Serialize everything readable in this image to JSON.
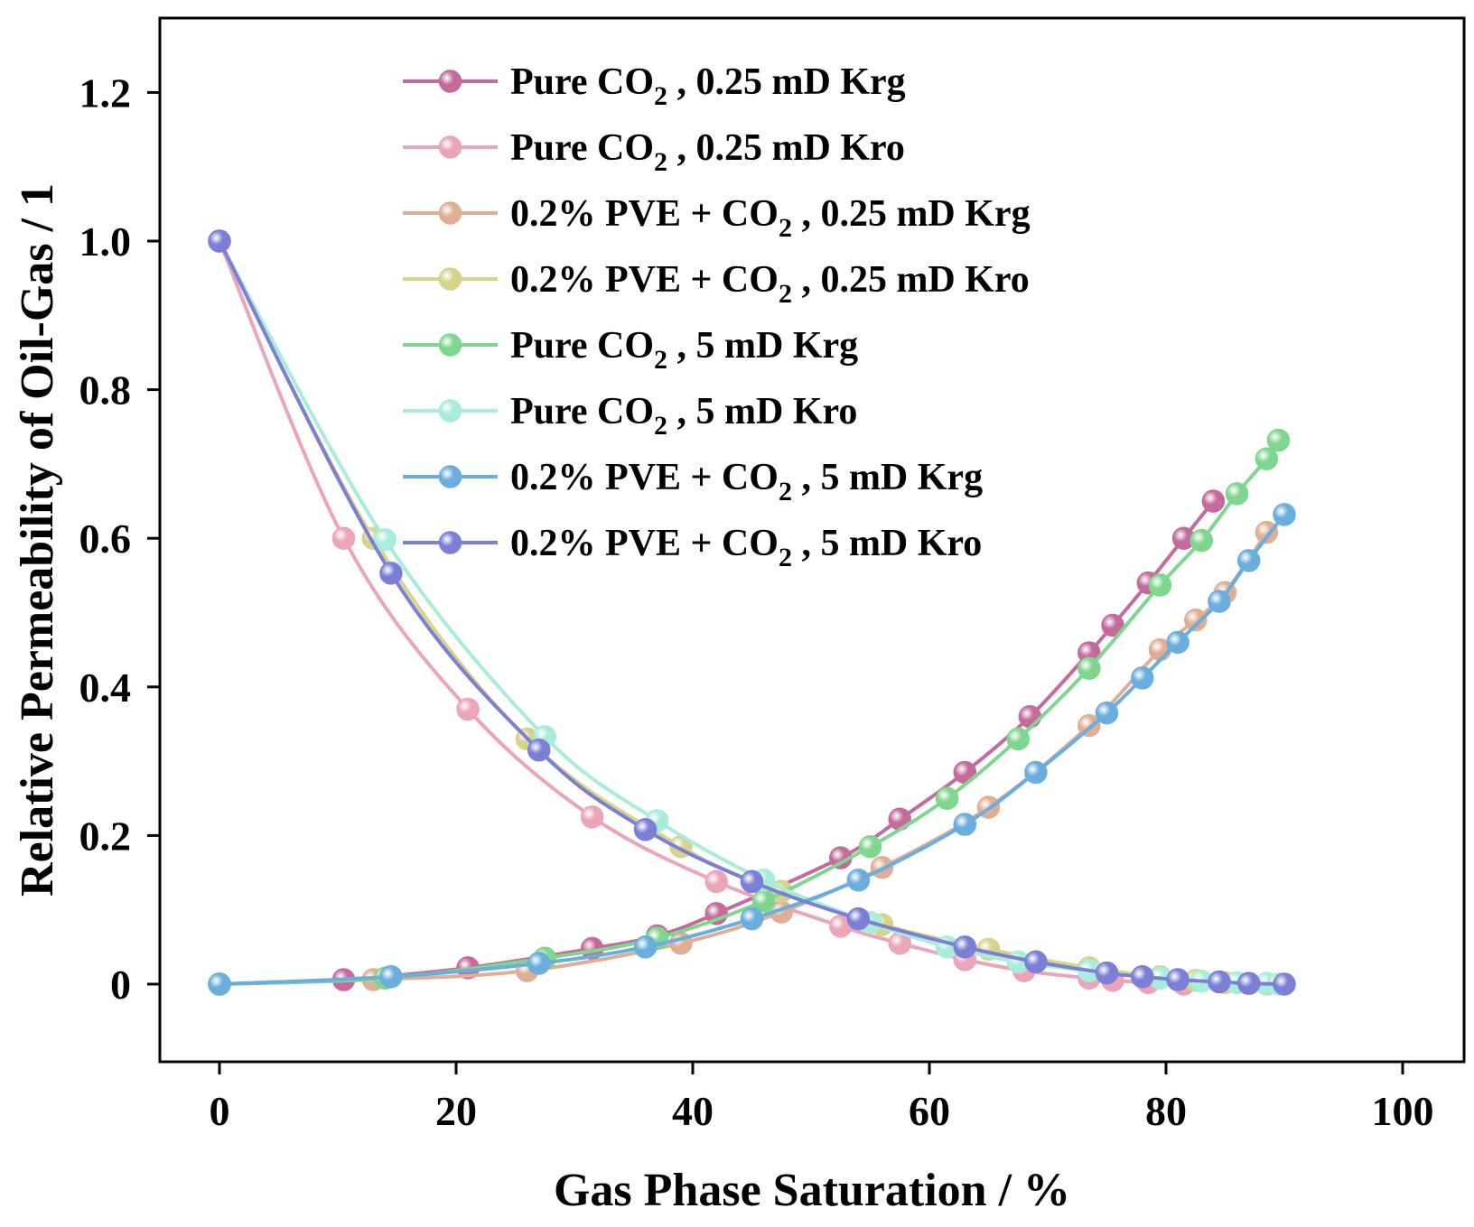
{
  "chart_data": {
    "type": "line",
    "title": "",
    "xlabel": "Gas Phase Saturation / %",
    "ylabel": "Relative Permeability of Oil-Gas / 1",
    "xlim": [
      -5,
      105
    ],
    "ylim": [
      -0.1,
      1.3
    ],
    "grid": false,
    "legend_position": "top-center",
    "x_ticks": [
      {
        "value": 0,
        "label": "0"
      },
      {
        "value": 20,
        "label": "20"
      },
      {
        "value": 40,
        "label": "40"
      },
      {
        "value": 60,
        "label": "60"
      },
      {
        "value": 80,
        "label": "80"
      },
      {
        "value": 100,
        "label": "100"
      }
    ],
    "y_ticks": [
      {
        "value": 0,
        "label": "0"
      },
      {
        "value": 0.2,
        "label": "0.2"
      },
      {
        "value": 0.4,
        "label": "0.4"
      },
      {
        "value": 0.6,
        "label": "0.6"
      },
      {
        "value": 0.8,
        "label": "0.8"
      },
      {
        "value": 1.0,
        "label": "1.0"
      },
      {
        "value": 1.2,
        "label": "1.2"
      }
    ],
    "series": [
      {
        "name": "Pure CO2 , 0.25 mD Krg",
        "legend_parts": [
          "Pure CO",
          "2",
          " , 0.25 mD Krg"
        ],
        "color": "#c46a9c",
        "x": [
          0,
          10.5,
          21,
          31.5,
          37,
          42,
          52.5,
          57.5,
          63,
          68.5,
          73.5,
          75.5,
          78.5,
          81.5,
          84
        ],
        "y": [
          0,
          0.006,
          0.022,
          0.048,
          0.065,
          0.095,
          0.17,
          0.222,
          0.285,
          0.36,
          0.446,
          0.483,
          0.54,
          0.6,
          0.65
        ]
      },
      {
        "name": "Pure CO2 , 0.25 mD Kro",
        "legend_parts": [
          "Pure CO",
          "2",
          " , 0.25 mD Kro"
        ],
        "color": "#eca4b8",
        "x": [
          0,
          10.5,
          21,
          31.5,
          42,
          52.5,
          57.5,
          63,
          68,
          73.5,
          75.5,
          78.5,
          81.5
        ],
        "y": [
          1.0,
          0.6,
          0.37,
          0.225,
          0.138,
          0.078,
          0.055,
          0.033,
          0.018,
          0.008,
          0.005,
          0.002,
          0.0
        ]
      },
      {
        "name": "0.2% PVE + CO2 , 0.25 mD Krg",
        "legend_parts": [
          "0.2% PVE + CO",
          "2",
          " , 0.25 mD Krg"
        ],
        "color": "#dfae94",
        "x": [
          0,
          13,
          26,
          39,
          47.5,
          56,
          65,
          73.5,
          79.5,
          82.5,
          85,
          88.5
        ],
        "y": [
          0,
          0.006,
          0.018,
          0.055,
          0.097,
          0.157,
          0.238,
          0.348,
          0.45,
          0.49,
          0.527,
          0.608
        ]
      },
      {
        "name": "0.2% PVE + CO2 , 0.25 mD Kro",
        "legend_parts": [
          "0.2% PVE + CO",
          "2",
          " , 0.25 mD Kro"
        ],
        "color": "#d6d48a",
        "x": [
          0,
          13,
          26,
          39,
          47.5,
          56,
          65,
          73.5,
          79.5,
          82.5,
          85,
          88.5
        ],
        "y": [
          1.0,
          0.6,
          0.33,
          0.185,
          0.125,
          0.08,
          0.047,
          0.022,
          0.01,
          0.005,
          0.002,
          0.0
        ]
      },
      {
        "name": "Pure CO2 , 5 mD Krg",
        "legend_parts": [
          "Pure CO",
          "2",
          " , 5 mD Krg"
        ],
        "color": "#7fd68e",
        "x": [
          0,
          14,
          27.5,
          37,
          46,
          55,
          61.5,
          67.5,
          73.5,
          79.5,
          83,
          86,
          88.5,
          89.5
        ],
        "y": [
          0,
          0.008,
          0.035,
          0.062,
          0.112,
          0.185,
          0.25,
          0.33,
          0.425,
          0.537,
          0.597,
          0.66,
          0.707,
          0.732
        ]
      },
      {
        "name": "Pure CO2 , 5 mD Kro",
        "legend_parts": [
          "Pure CO",
          "2",
          " , 5 mD Kro"
        ],
        "color": "#a8ecdc",
        "x": [
          0,
          14,
          27.5,
          37,
          46,
          55,
          61.5,
          67.5,
          73.5,
          79.5,
          83,
          86,
          88.5,
          89.5
        ],
        "y": [
          1.0,
          0.598,
          0.333,
          0.22,
          0.14,
          0.083,
          0.05,
          0.03,
          0.018,
          0.008,
          0.004,
          0.002,
          0.001,
          0.0
        ]
      },
      {
        "name": "0.2% PVE + CO2 , 5 mD Krg",
        "legend_parts": [
          "0.2% PVE + CO",
          "2",
          " , 5 mD Krg"
        ],
        "color": "#6aaedd",
        "x": [
          0,
          14.5,
          27,
          36,
          45,
          54,
          63,
          69,
          75,
          78,
          81,
          84.5,
          87,
          90
        ],
        "y": [
          0,
          0.01,
          0.028,
          0.05,
          0.088,
          0.14,
          0.215,
          0.285,
          0.365,
          0.412,
          0.46,
          0.515,
          0.57,
          0.632
        ]
      },
      {
        "name": "0.2% PVE + CO2 , 5 mD Kro",
        "legend_parts": [
          "0.2% PVE + CO",
          "2",
          " , 5 mD Kro"
        ],
        "color": "#7b7fd6",
        "x": [
          0,
          14.5,
          27,
          36,
          45,
          54,
          63,
          69,
          75,
          78,
          81,
          84.5,
          87,
          90
        ],
        "y": [
          1.0,
          0.553,
          0.315,
          0.208,
          0.138,
          0.088,
          0.05,
          0.03,
          0.015,
          0.01,
          0.006,
          0.003,
          0.001,
          0.0
        ]
      }
    ]
  }
}
